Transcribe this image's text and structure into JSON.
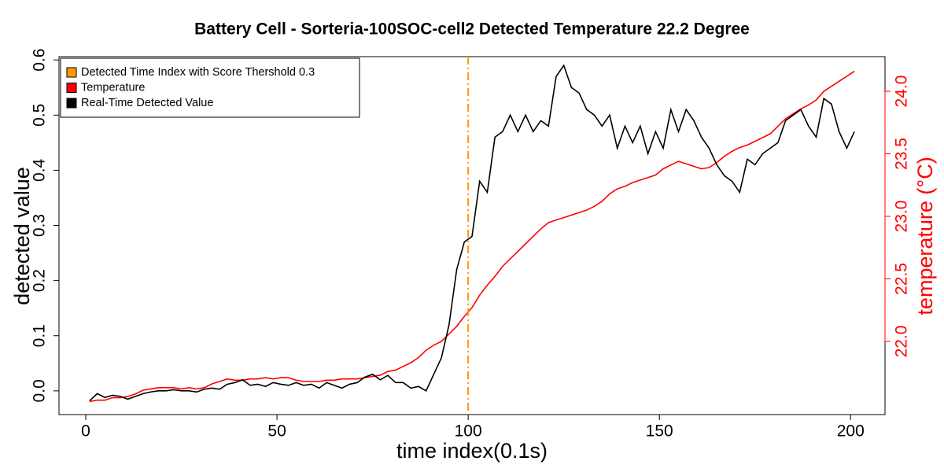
{
  "chart_data": {
    "type": "line",
    "title": "Battery Cell - Sorteria-100SOC-cell2 Detected Temperature 22.2 Degree",
    "x_label": "time index(0.1s)",
    "y_label": "detected value",
    "y2_label": "temperature (°C)",
    "x": [
      1,
      3,
      5,
      7,
      9,
      11,
      13,
      15,
      17,
      19,
      21,
      23,
      25,
      27,
      29,
      31,
      33,
      35,
      37,
      39,
      41,
      43,
      45,
      47,
      49,
      51,
      53,
      55,
      57,
      59,
      61,
      63,
      65,
      67,
      69,
      71,
      73,
      75,
      77,
      79,
      81,
      83,
      85,
      87,
      89,
      91,
      93,
      95,
      97,
      99,
      101,
      103,
      105,
      107,
      109,
      111,
      113,
      115,
      117,
      119,
      121,
      123,
      125,
      127,
      129,
      131,
      133,
      135,
      137,
      139,
      141,
      143,
      145,
      147,
      149,
      151,
      153,
      155,
      157,
      159,
      161,
      163,
      165,
      167,
      169,
      171,
      173,
      175,
      177,
      179,
      181,
      183,
      185,
      187,
      189,
      191,
      193,
      195,
      197,
      199,
      201
    ],
    "series": [
      {
        "name": "Temperature",
        "color": "#ff0000",
        "axis": "y2",
        "values": [
          21.52,
          21.53,
          21.53,
          21.55,
          21.55,
          21.56,
          21.58,
          21.61,
          21.62,
          21.63,
          21.63,
          21.63,
          21.62,
          21.63,
          21.62,
          21.63,
          21.66,
          21.68,
          21.7,
          21.69,
          21.69,
          21.7,
          21.7,
          21.71,
          21.7,
          21.71,
          21.71,
          21.69,
          21.68,
          21.68,
          21.68,
          21.69,
          21.69,
          21.7,
          21.7,
          21.7,
          21.71,
          21.72,
          21.73,
          21.76,
          21.77,
          21.8,
          21.83,
          21.87,
          21.93,
          21.97,
          22.0,
          22.06,
          22.12,
          22.2,
          22.27,
          22.37,
          22.45,
          22.52,
          22.6,
          22.66,
          22.72,
          22.78,
          22.84,
          22.9,
          22.95,
          22.97,
          22.99,
          23.01,
          23.03,
          23.05,
          23.08,
          23.12,
          23.18,
          23.22,
          23.24,
          23.27,
          23.29,
          23.31,
          23.33,
          23.38,
          23.41,
          23.44,
          23.42,
          23.4,
          23.38,
          23.39,
          23.43,
          23.48,
          23.52,
          23.55,
          23.57,
          23.6,
          23.63,
          23.66,
          23.72,
          23.78,
          23.82,
          23.86,
          23.89,
          23.93,
          24.0,
          24.04,
          24.08,
          24.12,
          24.16
        ]
      },
      {
        "name": "Real-Time Detected Value",
        "color": "#000000",
        "values": [
          -0.018,
          -0.005,
          -0.012,
          -0.008,
          -0.01,
          -0.015,
          -0.01,
          -0.005,
          -0.002,
          0.0,
          0.0,
          0.002,
          0.0,
          0.0,
          -0.002,
          0.003,
          0.005,
          0.003,
          0.012,
          0.015,
          0.02,
          0.01,
          0.012,
          0.008,
          0.015,
          0.012,
          0.01,
          0.015,
          0.01,
          0.012,
          0.005,
          0.015,
          0.01,
          0.005,
          0.012,
          0.015,
          0.025,
          0.03,
          0.02,
          0.028,
          0.015,
          0.015,
          0.005,
          0.008,
          0.0,
          0.03,
          0.06,
          0.12,
          0.22,
          0.27,
          0.28,
          0.38,
          0.36,
          0.46,
          0.47,
          0.5,
          0.47,
          0.5,
          0.47,
          0.49,
          0.48,
          0.57,
          0.59,
          0.55,
          0.54,
          0.51,
          0.5,
          0.48,
          0.5,
          0.44,
          0.48,
          0.45,
          0.48,
          0.43,
          0.47,
          0.44,
          0.51,
          0.47,
          0.51,
          0.49,
          0.46,
          0.44,
          0.41,
          0.39,
          0.38,
          0.36,
          0.42,
          0.41,
          0.43,
          0.44,
          0.45,
          0.49,
          0.5,
          0.51,
          0.48,
          0.46,
          0.53,
          0.52,
          0.47,
          0.44,
          0.47
        ]
      }
    ],
    "vlines": [
      {
        "name": "Detected Time Index with Score Thershold 0.3",
        "x": 100,
        "color": "#ff9900"
      }
    ],
    "xlim": [
      -7,
      209
    ],
    "xticks": [
      0,
      50,
      100,
      150,
      200
    ],
    "ylim": [
      -0.043,
      0.606
    ],
    "yticks": [
      {
        "value": 0,
        "label": "0.0"
      },
      0.1,
      0.2,
      0.3,
      0.4,
      0.5,
      0.6
    ],
    "y2lim": [
      21.415,
      24.277
    ],
    "y2ticks": [
      {
        "value": 22,
        "label": "22.0"
      },
      22.5,
      {
        "value": 23,
        "label": "23.0"
      },
      23.5,
      {
        "value": 24,
        "label": "24.0"
      }
    ],
    "y2_color": "#ff0000",
    "legend": "top-left"
  }
}
